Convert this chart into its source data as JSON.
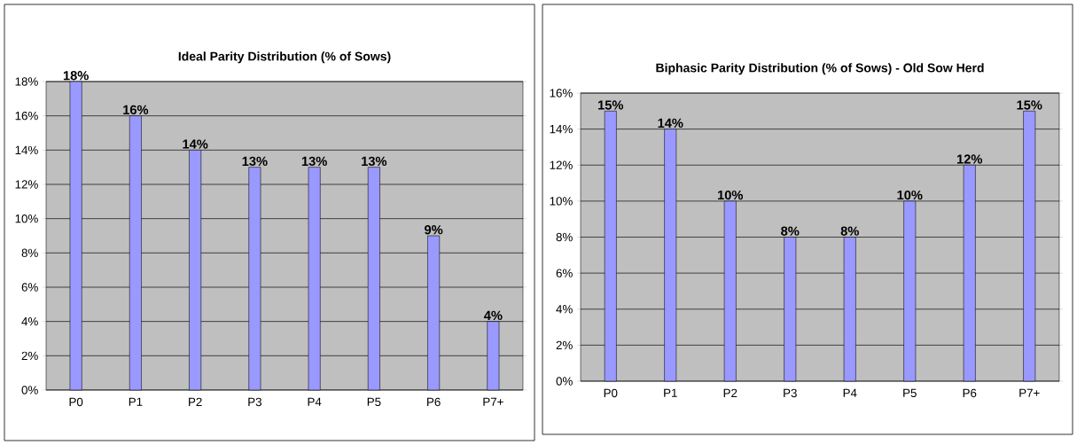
{
  "chart_data": [
    {
      "type": "bar",
      "title": "Ideal Parity Distribution (% of Sows)",
      "categories": [
        "P0",
        "P1",
        "P2",
        "P3",
        "P4",
        "P5",
        "P6",
        "P7+"
      ],
      "values": [
        18,
        16,
        14,
        13,
        13,
        13,
        9,
        4
      ],
      "value_labels": [
        "18%",
        "16%",
        "14%",
        "13%",
        "13%",
        "13%",
        "9%",
        "4%"
      ],
      "color": "#9999ff",
      "ylim": [
        0,
        18
      ],
      "yticks": [
        {
          "value": 0,
          "label": "0%"
        },
        {
          "value": 2,
          "label": "2%"
        },
        {
          "value": 4,
          "label": "4%"
        },
        {
          "value": 6,
          "label": "6%"
        },
        {
          "value": 8,
          "label": "8%"
        },
        {
          "value": 10,
          "label": "10%"
        },
        {
          "value": 12,
          "label": "12%"
        },
        {
          "value": 14,
          "label": "14%"
        },
        {
          "value": 16,
          "label": "16%"
        },
        {
          "value": 18,
          "label": "18%"
        }
      ],
      "grid": "y"
    },
    {
      "type": "bar",
      "title": "Biphasic Parity Distribution (% of Sows) - Old Sow Herd",
      "categories": [
        "P0",
        "P1",
        "P2",
        "P3",
        "P4",
        "P5",
        "P6",
        "P7+"
      ],
      "values": [
        15,
        14,
        10,
        8,
        8,
        10,
        12,
        15
      ],
      "value_labels": [
        "15%",
        "14%",
        "10%",
        "8%",
        "8%",
        "10%",
        "12%",
        "15%"
      ],
      "color": "#9999ff",
      "ylim": [
        0,
        16
      ],
      "yticks": [
        {
          "value": 0,
          "label": "0%"
        },
        {
          "value": 2,
          "label": "2%"
        },
        {
          "value": 4,
          "label": "4%"
        },
        {
          "value": 6,
          "label": "6%"
        },
        {
          "value": 8,
          "label": "8%"
        },
        {
          "value": 10,
          "label": "10%"
        },
        {
          "value": 12,
          "label": "12%"
        },
        {
          "value": 14,
          "label": "14%"
        },
        {
          "value": 16,
          "label": "16%"
        }
      ],
      "grid": "y"
    }
  ]
}
